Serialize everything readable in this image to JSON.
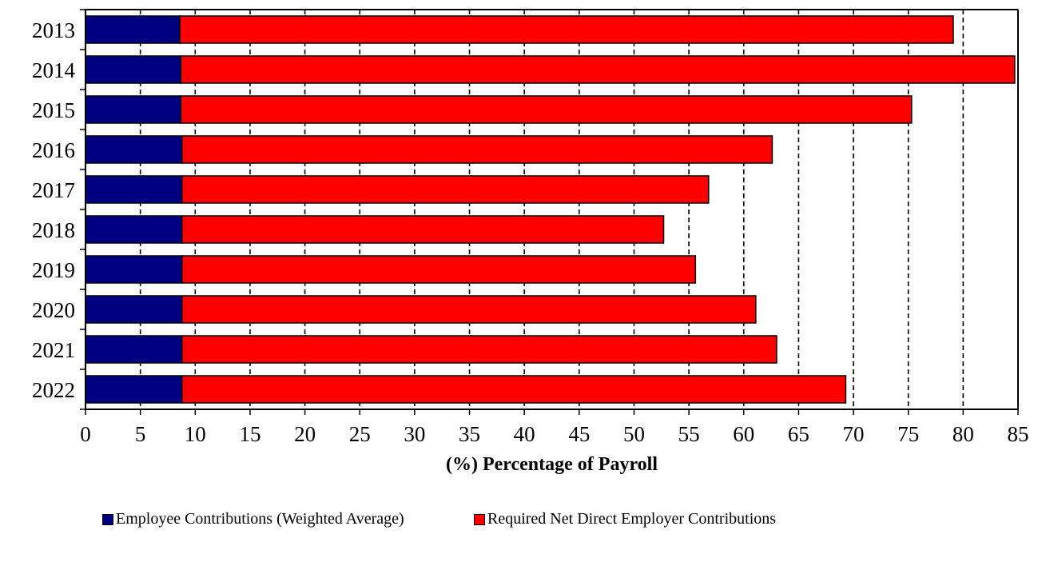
{
  "chart_data": {
    "type": "bar",
    "orientation": "horizontal",
    "stacked": true,
    "title": "",
    "xlabel": "(%) Percentage of Payroll",
    "ylabel": "",
    "xlim": [
      0,
      85
    ],
    "xticks": [
      0,
      5,
      10,
      15,
      20,
      25,
      30,
      35,
      40,
      45,
      50,
      55,
      60,
      65,
      70,
      75,
      80,
      85
    ],
    "grid": "vertical dashed",
    "legend_position": "bottom",
    "categories": [
      "2013",
      "2014",
      "2015",
      "2016",
      "2017",
      "2018",
      "2019",
      "2020",
      "2021",
      "2022"
    ],
    "series": [
      {
        "name": "Employee Contributions (Weighted Average)",
        "color": "#000080",
        "values": [
          8.6,
          8.7,
          8.7,
          8.8,
          8.8,
          8.8,
          8.8,
          8.8,
          8.8,
          8.8
        ]
      },
      {
        "name": "Required Net Direct Employer Contributions",
        "color": "#ff0000",
        "values": [
          70.5,
          76.0,
          66.6,
          53.8,
          48.0,
          43.9,
          46.8,
          52.3,
          54.2,
          60.5
        ]
      }
    ]
  }
}
